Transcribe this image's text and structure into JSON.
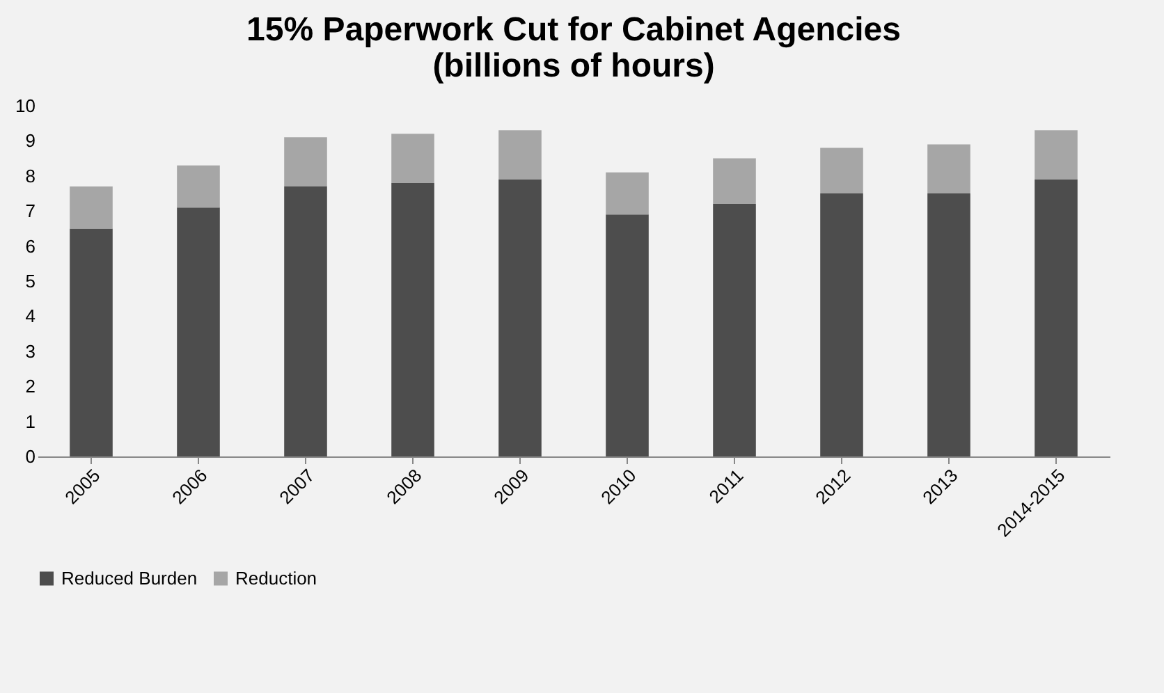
{
  "chart_data": {
    "type": "bar",
    "title": [
      "15% Paperwork Cut for Cabinet Agencies",
      "(billions of hours)"
    ],
    "stacked": true,
    "categories": [
      "2005",
      "2006",
      "2007",
      "2008",
      "2009",
      "2010",
      "2011",
      "2012",
      "2013",
      "2014-2015"
    ],
    "series": [
      {
        "name": "Reduced Burden",
        "color": "#4d4d4d",
        "values": [
          6.5,
          7.1,
          7.7,
          7.8,
          7.9,
          6.9,
          7.2,
          7.5,
          7.5,
          7.9
        ]
      },
      {
        "name": "Reduction",
        "color": "#a6a6a6",
        "values": [
          1.2,
          1.2,
          1.4,
          1.4,
          1.4,
          1.2,
          1.3,
          1.3,
          1.4,
          1.4
        ]
      }
    ],
    "ylim": [
      0,
      10
    ],
    "yticks": [
      0,
      1,
      2,
      3,
      4,
      5,
      6,
      7,
      8,
      9,
      10
    ],
    "grid": false,
    "legend": "bottom"
  }
}
